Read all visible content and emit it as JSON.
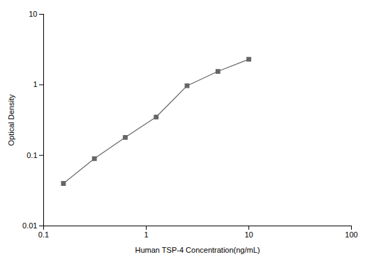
{
  "chart_data": {
    "type": "line",
    "x": [
      0.156,
      0.3125,
      0.625,
      1.25,
      2.5,
      5.0,
      10.0
    ],
    "values": [
      0.04,
      0.09,
      0.18,
      0.35,
      0.97,
      1.55,
      2.3
    ],
    "xlabel": "Human TSP-4 Concentration(ng/mL)",
    "ylabel": "Optical Density",
    "xlim": [
      0.1,
      100
    ],
    "ylim": [
      0.01,
      10
    ],
    "xticks": [
      0.1,
      1,
      10,
      100
    ],
    "yticks": [
      0.01,
      0.1,
      1,
      10
    ],
    "log": true,
    "grid": false,
    "color": "#666666",
    "marker": "square"
  }
}
